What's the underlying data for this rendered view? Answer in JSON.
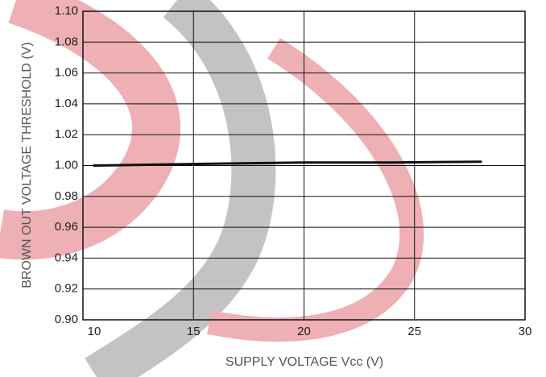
{
  "chart_data": {
    "type": "line",
    "xlabel": "SUPPLY VOLTAGE Vcc (V)",
    "ylabel": "BROWN OUT VOLTAGE THRESHOLD (V)",
    "x": [
      10.5,
      15,
      20,
      24,
      28
    ],
    "values": [
      1.0,
      1.001,
      1.002,
      1.002,
      1.0025
    ],
    "color": "#111111",
    "xlim": [
      10,
      30
    ],
    "xticks": [
      10,
      15,
      20,
      25,
      30
    ],
    "ylim": [
      0.9,
      1.1
    ],
    "yticks": [
      {
        "value": 0.9,
        "label": "0.90"
      },
      0.92,
      0.94,
      0.96,
      0.98,
      {
        "value": 1.0,
        "label": "1.00"
      },
      1.02,
      1.04,
      1.06,
      1.08,
      {
        "value": 1.1,
        "label": "1.10"
      }
    ],
    "grid": true
  }
}
